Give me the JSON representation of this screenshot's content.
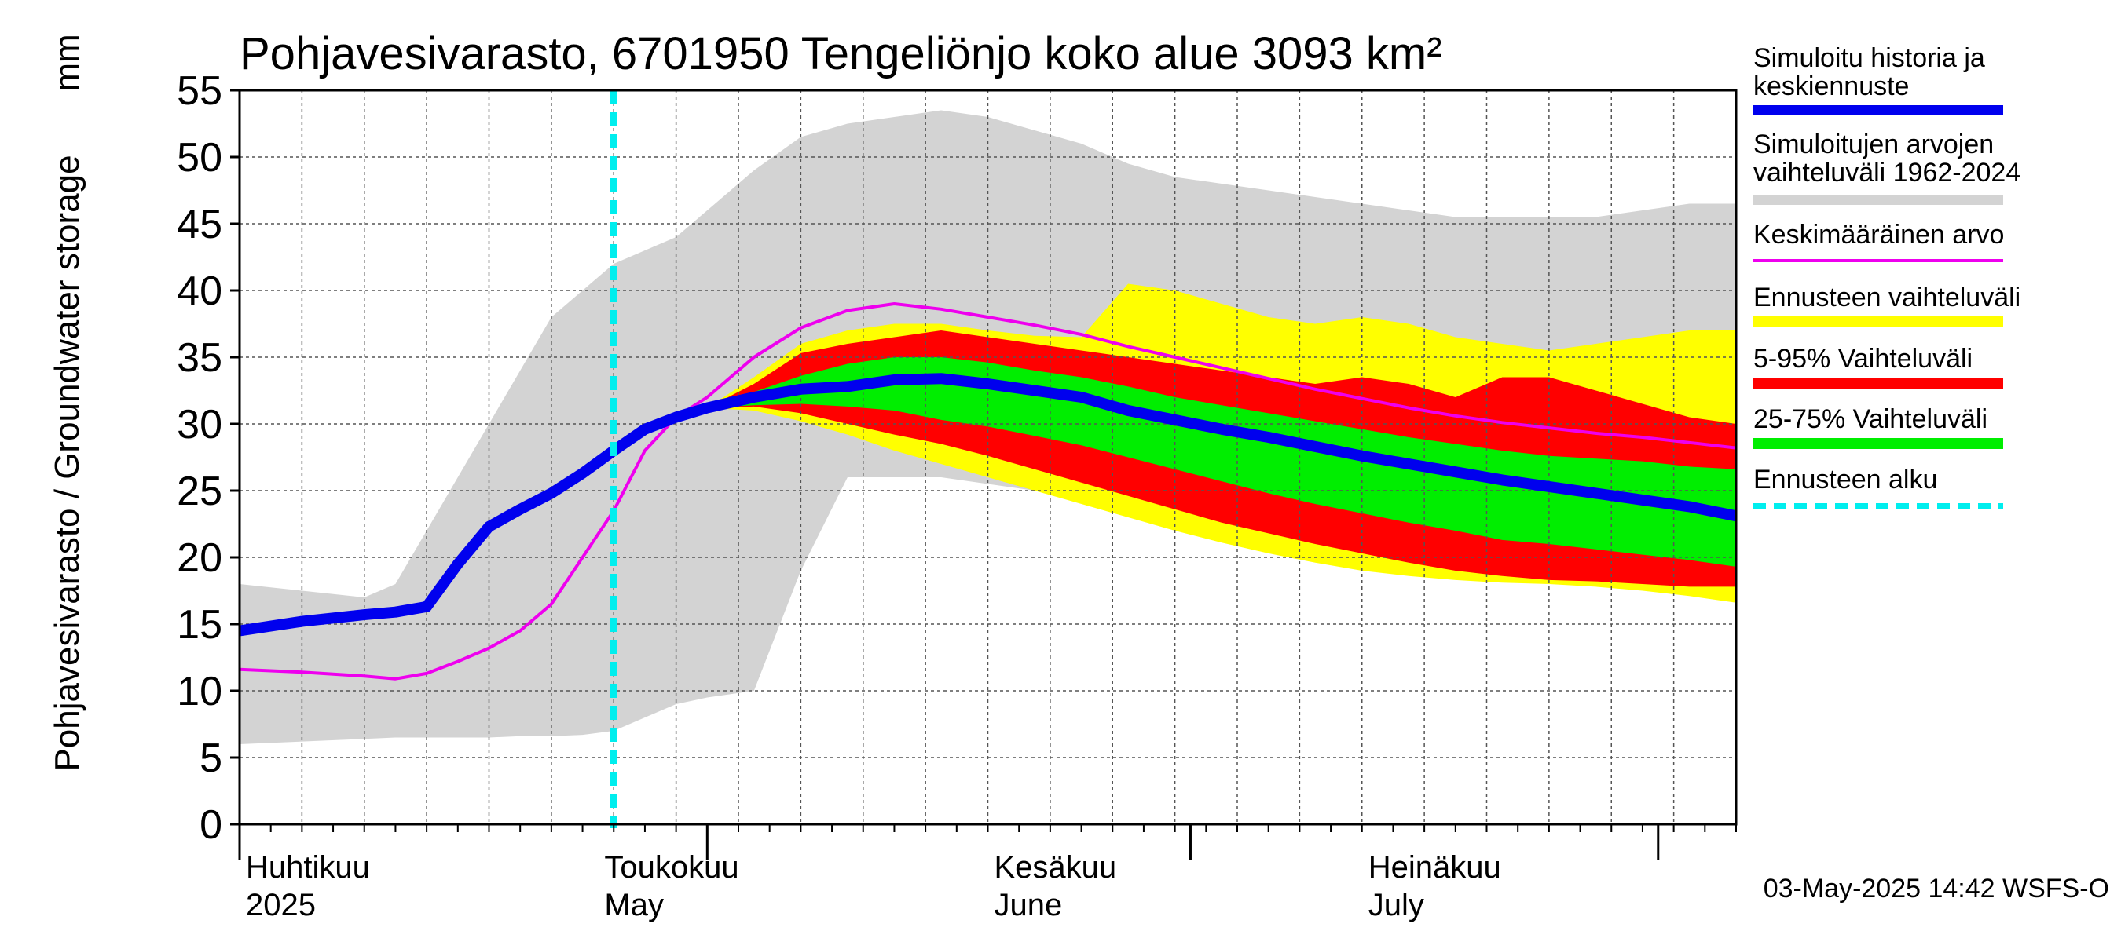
{
  "chart_data": {
    "type": "area",
    "title": "Pohjavesivarasto, 6701950 Tengeliönjo koko alue 3093 km²",
    "ylabel": "Pohjavesivarasto / Groundwater storage",
    "yunit": "mm",
    "ylim": [
      0,
      55
    ],
    "yticks": [
      0,
      5,
      10,
      15,
      20,
      25,
      30,
      35,
      40,
      45,
      50,
      55
    ],
    "xlim": [
      0,
      96
    ],
    "x_label_note": "days since 1 April 2025",
    "grid": true,
    "month_ticks": [
      0,
      30,
      61,
      91
    ],
    "forecast_start_day": 24,
    "month_labels": [
      {
        "day": 0,
        "fi": "Huhtikuu",
        "en": "2025"
      },
      {
        "day": 23,
        "fi": "Toukokuu",
        "en": "May"
      },
      {
        "day": 48,
        "fi": "Kesäkuu",
        "en": "June"
      },
      {
        "day": 72,
        "fi": "Heinäkuu",
        "en": "July"
      }
    ],
    "x": [
      0,
      4,
      8,
      10,
      12,
      14,
      16,
      18,
      20,
      22,
      24,
      26,
      28,
      30,
      33,
      36,
      39,
      42,
      45,
      48,
      51,
      54,
      57,
      60,
      63,
      66,
      69,
      72,
      75,
      78,
      81,
      84,
      87,
      90,
      93,
      96
    ],
    "series": [
      {
        "name": "hist_min",
        "values": [
          6,
          6.2,
          6.4,
          6.5,
          6.5,
          6.5,
          6.5,
          6.6,
          6.6,
          6.7,
          7,
          8,
          9,
          9.5,
          10,
          19,
          26,
          26,
          26,
          25.5,
          25,
          24.5,
          24,
          23.5,
          23,
          22.5,
          22,
          21.5,
          21,
          20.5,
          20,
          19.5,
          19,
          18.5,
          18,
          17.5
        ]
      },
      {
        "name": "hist_max",
        "values": [
          18,
          17.5,
          17,
          18,
          22,
          26,
          30,
          34,
          38,
          40,
          42,
          43,
          44,
          46,
          49,
          51.5,
          52.5,
          53,
          53.5,
          53,
          52,
          51,
          49.5,
          48.5,
          48,
          47.5,
          47,
          46.5,
          46,
          45.5,
          45.5,
          45.5,
          45.5,
          46,
          46.5,
          46.5
        ]
      },
      {
        "name": "Simuloitu historia ja keskiennuste",
        "values": [
          14.5,
          15.2,
          15.7,
          15.9,
          16.3,
          19.5,
          22.3,
          23.6,
          24.8,
          26.3,
          28,
          29.6,
          30.5,
          31.2,
          32,
          32.6,
          32.8,
          33.3,
          33.4,
          33,
          32.5,
          32,
          31,
          30.3,
          29.6,
          29,
          28.3,
          27.6,
          27,
          26.4,
          25.8,
          25.3,
          24.8,
          24.3,
          23.8,
          23.1
        ]
      },
      {
        "name": "Keskimääräinen arvo",
        "values": [
          11.6,
          11.4,
          11.1,
          10.9,
          11.3,
          12.2,
          13.2,
          14.5,
          16.5,
          20,
          23.5,
          28,
          30.5,
          32,
          35,
          37.2,
          38.5,
          39,
          38.6,
          38,
          37.4,
          36.7,
          35.8,
          35,
          34.2,
          33.4,
          32.6,
          31.9,
          31.2,
          30.6,
          30.1,
          29.7,
          29.3,
          29,
          28.6,
          28.2
        ]
      },
      {
        "name": "fc_min",
        "values": [
          null,
          null,
          null,
          null,
          null,
          null,
          null,
          null,
          null,
          null,
          null,
          null,
          null,
          31.2,
          31,
          30.2,
          29.2,
          28,
          27,
          26,
          25,
          24,
          23,
          22,
          21.1,
          20.3,
          19.6,
          19,
          18.6,
          18.3,
          18.1,
          18,
          17.8,
          17.5,
          17.1,
          16.6
        ]
      },
      {
        "name": "fc_max",
        "values": [
          null,
          null,
          null,
          null,
          null,
          null,
          null,
          null,
          null,
          null,
          null,
          null,
          null,
          31.2,
          33.5,
          36,
          37,
          37.5,
          37.5,
          37,
          36.6,
          36.5,
          40.5,
          40,
          39,
          38,
          37.5,
          38,
          37.5,
          36.5,
          36,
          35.5,
          36,
          36.5,
          37,
          37
        ]
      },
      {
        "name": "p5",
        "values": [
          null,
          null,
          null,
          null,
          null,
          null,
          null,
          null,
          null,
          null,
          null,
          null,
          null,
          31.2,
          31.3,
          30.8,
          30,
          29.2,
          28.5,
          27.6,
          26.6,
          25.6,
          24.6,
          23.6,
          22.6,
          21.8,
          21,
          20.3,
          19.6,
          19,
          18.6,
          18.3,
          18.2,
          18,
          17.8,
          17.8
        ]
      },
      {
        "name": "p95",
        "values": [
          null,
          null,
          null,
          null,
          null,
          null,
          null,
          null,
          null,
          null,
          null,
          null,
          null,
          31.2,
          33,
          35.3,
          36,
          36.5,
          37,
          36.5,
          36,
          35.5,
          35,
          34.5,
          34,
          33.5,
          33,
          33.5,
          33,
          32,
          33.5,
          33.5,
          32.5,
          31.5,
          30.5,
          30
        ]
      },
      {
        "name": "p25",
        "values": [
          null,
          null,
          null,
          null,
          null,
          null,
          null,
          null,
          null,
          null,
          null,
          null,
          null,
          31.2,
          31.4,
          31.5,
          31.3,
          31,
          30.3,
          29.8,
          29.1,
          28.4,
          27.5,
          26.6,
          25.7,
          24.8,
          24,
          23.3,
          22.6,
          22,
          21.3,
          21,
          20.6,
          20.2,
          19.8,
          19.3
        ]
      },
      {
        "name": "p75",
        "values": [
          null,
          null,
          null,
          null,
          null,
          null,
          null,
          null,
          null,
          null,
          null,
          null,
          null,
          31.2,
          32.4,
          33.6,
          34.5,
          35,
          35,
          34.6,
          34,
          33.5,
          32.8,
          32,
          31.4,
          30.8,
          30.2,
          29.6,
          29,
          28.5,
          28,
          27.6,
          27.4,
          27.2,
          26.8,
          26.6
        ]
      }
    ]
  },
  "legend": [
    {
      "label": "Simuloitu historia ja keskiennuste",
      "color": "#0000ee"
    },
    {
      "label": "Simuloitujen arvojen vaihteluväli 1962-2024",
      "color": "#d3d3d3"
    },
    {
      "label": "Keskimääräinen arvo",
      "color": "#ee00ee"
    },
    {
      "label": "Ennusteen vaihteluväli",
      "color": "#ffff00"
    },
    {
      "label": "5-95% Vaihteluväli",
      "color": "#ff0000"
    },
    {
      "label": "25-75% Vaihteluväli",
      "color": "#00ee00"
    },
    {
      "label": "Ennusteen alku",
      "color": "#00eeee"
    }
  ],
  "footer": "03-May-2025 14:42 WSFS-O"
}
